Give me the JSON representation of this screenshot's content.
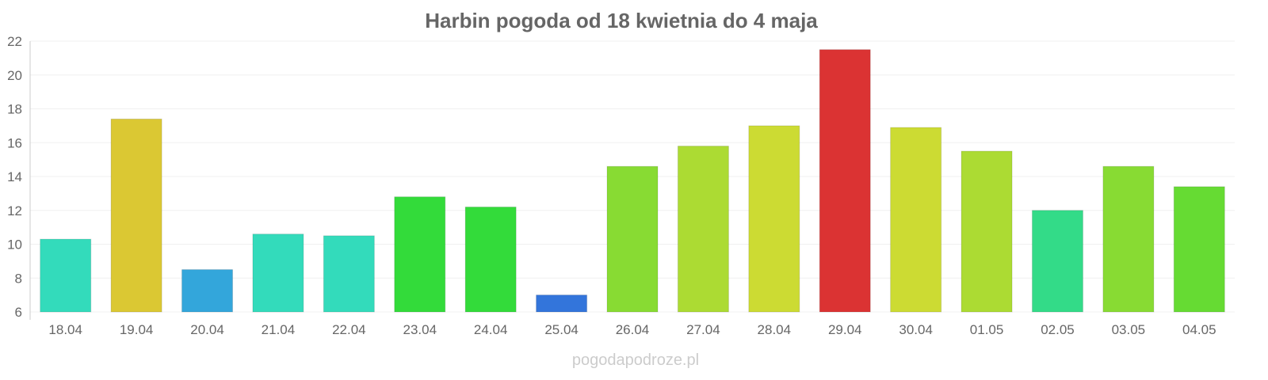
{
  "chart_data": {
    "type": "bar",
    "title": "Harbin pogoda od 18 kwietnia do 4 maja",
    "xlabel": "",
    "ylabel": "",
    "ylim": [
      6,
      22
    ],
    "yticks": [
      6,
      8,
      10,
      12,
      14,
      16,
      18,
      20,
      22
    ],
    "grid": true,
    "categories": [
      "18.04",
      "19.04",
      "20.04",
      "21.04",
      "22.04",
      "23.04",
      "24.04",
      "25.04",
      "26.04",
      "27.04",
      "28.04",
      "29.04",
      "30.04",
      "01.05",
      "02.05",
      "03.05",
      "04.05"
    ],
    "values": [
      10.3,
      17.4,
      8.5,
      10.6,
      10.5,
      12.8,
      12.2,
      7.0,
      14.6,
      15.8,
      17.0,
      21.5,
      16.9,
      15.5,
      12.0,
      14.6,
      13.4
    ],
    "colors": [
      "#33dbbb",
      "#dbc833",
      "#33a6db",
      "#33dbbb",
      "#33dbbb",
      "#33db3a",
      "#33db3a",
      "#3375db",
      "#88db33",
      "#acdb33",
      "#ccdb33",
      "#db3333",
      "#ccdb33",
      "#acdb33",
      "#33db88",
      "#88db33",
      "#66db33"
    ]
  },
  "credit": "pogodapodroze.pl"
}
